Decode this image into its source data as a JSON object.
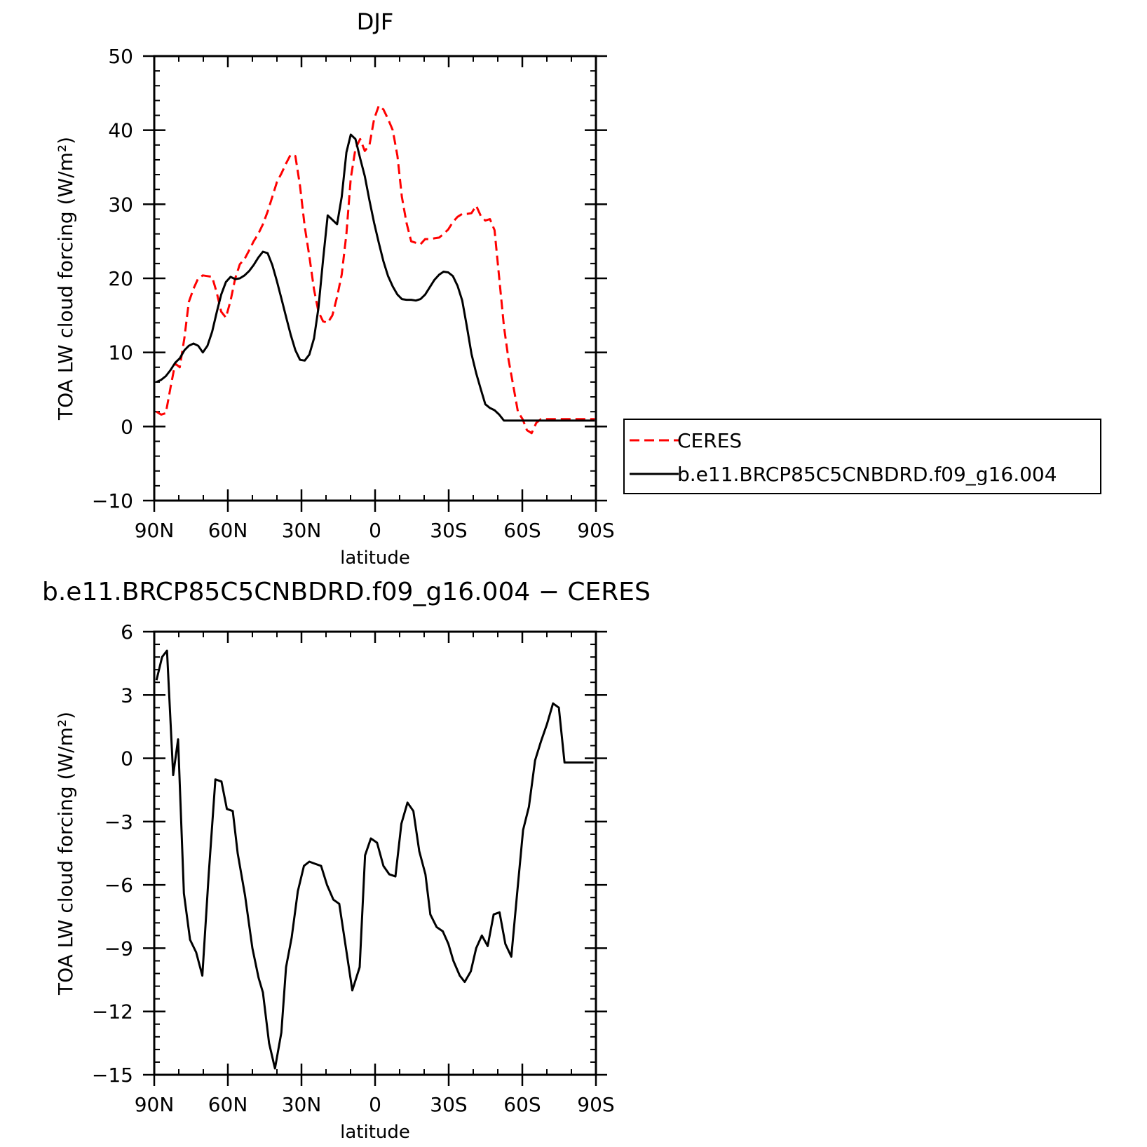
{
  "chart_data": [
    {
      "type": "line",
      "title": "DJF",
      "xlabel": "latitude",
      "ylabel": "TOA LW cloud forcing (W/m²)",
      "xlim": [
        90,
        -90
      ],
      "ylim": [
        -10,
        50
      ],
      "x_ticks": [
        90,
        60,
        30,
        0,
        -30,
        -60,
        -90
      ],
      "x_tick_labels": [
        "90N",
        "60N",
        "30N",
        "0",
        "30S",
        "60S",
        "90S"
      ],
      "y_ticks": [
        -10,
        0,
        10,
        20,
        30,
        40,
        50
      ],
      "y_tick_labels": [
        "−10",
        "0",
        "10",
        "20",
        "30",
        "40",
        "50"
      ],
      "legend_position": "right",
      "x": [
        89.1,
        87.2,
        85.3,
        83.4,
        81.5,
        79.6,
        77.7,
        75.9,
        74.0,
        72.1,
        70.2,
        68.3,
        66.4,
        64.5,
        62.7,
        60.8,
        58.9,
        57.0,
        55.1,
        53.2,
        51.3,
        49.5,
        47.6,
        45.7,
        43.8,
        41.9,
        40.0,
        38.1,
        36.3,
        34.4,
        32.5,
        30.6,
        28.7,
        26.8,
        24.9,
        23.1,
        21.2,
        19.3,
        17.4,
        15.5,
        13.6,
        11.7,
        9.9,
        8.0,
        6.1,
        4.2,
        2.3,
        0.4,
        -1.5,
        -3.4,
        -5.3,
        -7.2,
        -9.1,
        -10.9,
        -12.8,
        -14.7,
        -16.6,
        -18.5,
        -20.4,
        -22.3,
        -24.2,
        -26.1,
        -27.9,
        -29.8,
        -31.7,
        -33.6,
        -35.5,
        -37.4,
        -39.3,
        -41.2,
        -43.1,
        -44.9,
        -46.8,
        -48.7,
        -50.6,
        -52.5,
        -54.4,
        -56.3,
        -58.2,
        -60.1,
        -61.9,
        -63.8,
        -65.7,
        -67.6,
        -69.5,
        -71.4,
        -73.3,
        -75.2,
        -77.1,
        -78.9,
        -80.8,
        -82.7,
        -84.6,
        -86.5,
        -88.4,
        -89.5
      ],
      "series": [
        {
          "name": "CERES",
          "color": "#ff0000",
          "dash": "dashed",
          "values": [
            2.0,
            1.6,
            1.8,
            5.2,
            8.5,
            8.0,
            12.0,
            16.8,
            18.6,
            20.0,
            20.4,
            20.3,
            20.2,
            18.0,
            15.5,
            14.7,
            17.0,
            20.0,
            21.9,
            22.6,
            23.8,
            25.0,
            26.0,
            27.3,
            29.0,
            31.0,
            33.0,
            34.2,
            35.5,
            36.7,
            36.5,
            32.5,
            27.0,
            23.0,
            18.5,
            15.5,
            14.2,
            14.0,
            15.0,
            17.5,
            20.5,
            26.0,
            33.5,
            37.5,
            38.8,
            37.2,
            38.0,
            41.5,
            43.3,
            42.8,
            41.5,
            40.0,
            36.5,
            31.0,
            27.5,
            25.0,
            24.8,
            24.6,
            25.3,
            25.3,
            25.4,
            25.5,
            26.0,
            26.6,
            27.6,
            28.3,
            28.7,
            28.7,
            28.8,
            29.8,
            28.4,
            27.8,
            28.0,
            26.5,
            20.0,
            13.5,
            9.0,
            5.5,
            2.0,
            1.0,
            -0.5,
            -0.9,
            0.5,
            1.0,
            1.0,
            1.0,
            1.0,
            1.0,
            1.0,
            1.0,
            1.0,
            1.0,
            1.0,
            1.0,
            1.0,
            1.0
          ]
        },
        {
          "name": "b.e11.BRCP85C5CNBDRD.f09_g16.004",
          "color": "#000000",
          "dash": "solid",
          "values": [
            6.0,
            6.3,
            6.8,
            7.6,
            8.6,
            9.2,
            10.3,
            10.9,
            11.2,
            10.9,
            10.0,
            10.9,
            12.8,
            15.5,
            17.8,
            19.5,
            20.2,
            19.9,
            20.0,
            20.4,
            21.0,
            21.8,
            22.8,
            23.6,
            23.4,
            21.8,
            19.6,
            17.2,
            14.8,
            12.4,
            10.3,
            9.0,
            8.9,
            9.7,
            11.9,
            16.0,
            22.5,
            28.5,
            27.9,
            27.3,
            31.0,
            37.0,
            39.4,
            38.8,
            36.2,
            33.8,
            30.5,
            27.5,
            24.8,
            22.3,
            20.3,
            18.9,
            17.8,
            17.2,
            17.1,
            17.1,
            17.0,
            17.2,
            17.8,
            18.8,
            19.8,
            20.5,
            20.9,
            20.8,
            20.3,
            19.0,
            17.0,
            13.5,
            9.8,
            7.2,
            5.0,
            3.0,
            2.5,
            2.2,
            1.6,
            0.8,
            0.8,
            0.8,
            0.8,
            0.8,
            0.8,
            0.8,
            0.8,
            0.8,
            0.8,
            0.8,
            0.8,
            0.8,
            0.8,
            0.8,
            0.8,
            0.8,
            0.8,
            0.8,
            0.8,
            0.8
          ]
        }
      ]
    },
    {
      "type": "line",
      "title": "b.e11.BRCP85C5CNBDRD.f09_g16.004 − CERES",
      "xlabel": "latitude",
      "ylabel": "TOA LW cloud forcing (W/m²)",
      "xlim": [
        90,
        -90
      ],
      "ylim": [
        -15,
        6
      ],
      "x_ticks": [
        90,
        60,
        30,
        0,
        -30,
        -60,
        -90
      ],
      "x_tick_labels": [
        "90N",
        "60N",
        "30N",
        "0",
        "30S",
        "60S",
        "90S"
      ],
      "y_ticks": [
        -15,
        -12,
        -9,
        -6,
        -3,
        0,
        3,
        6
      ],
      "y_tick_labels": [
        "−15",
        "−12",
        "−9",
        "−6",
        "−3",
        "0",
        "3",
        "6"
      ],
      "x": [
        89.1,
        86.8,
        84.8,
        82.3,
        80.3,
        77.9,
        75.4,
        72.9,
        70.4,
        67.8,
        65.1,
        62.6,
        60.4,
        58.0,
        56.0,
        53.0,
        50.0,
        47.5,
        45.7,
        43.2,
        40.8,
        38.2,
        36.3,
        34.0,
        31.5,
        29.0,
        26.8,
        24.5,
        22.0,
        19.6,
        17.0,
        14.6,
        12.0,
        9.3,
        6.3,
        4.1,
        1.7,
        -0.8,
        -3.4,
        -5.8,
        -8.3,
        -10.7,
        -13.2,
        -15.6,
        -18.0,
        -20.5,
        -22.5,
        -25.1,
        -27.6,
        -29.9,
        -31.9,
        -34.5,
        -36.5,
        -39.0,
        -41.2,
        -43.5,
        -45.9,
        -48.3,
        -50.7,
        -53.1,
        -55.5,
        -57.9,
        -60.3,
        -62.7,
        -65.2,
        -67.6,
        -70.0,
        -72.5,
        -74.9,
        -77.2,
        -79.6,
        -81.9,
        -84.3,
        -86.6,
        -89.0
      ],
      "series": [
        {
          "name": "",
          "color": "#000000",
          "dash": "solid",
          "values": [
            3.7,
            4.8,
            5.1,
            -0.8,
            0.9,
            -6.4,
            -8.6,
            -9.2,
            -10.3,
            -5.5,
            -1.0,
            -1.1,
            -2.4,
            -2.5,
            -4.5,
            -6.5,
            -9.0,
            -10.4,
            -11.1,
            -13.5,
            -14.7,
            -13.0,
            -9.9,
            -8.5,
            -6.3,
            -5.1,
            -4.9,
            -5.0,
            -5.1,
            -6.0,
            -6.7,
            -6.9,
            -8.9,
            -11.0,
            -9.9,
            -4.6,
            -3.8,
            -4.0,
            -5.1,
            -5.5,
            -5.6,
            -3.1,
            -2.1,
            -2.5,
            -4.4,
            -5.5,
            -7.4,
            -8.0,
            -8.2,
            -8.8,
            -9.6,
            -10.3,
            -10.6,
            -10.1,
            -9.0,
            -8.4,
            -8.9,
            -7.4,
            -7.3,
            -8.8,
            -9.4,
            -6.4,
            -3.4,
            -2.3,
            -0.1,
            0.8,
            1.6,
            2.6,
            2.4,
            -0.2,
            -0.2,
            -0.2,
            -0.2,
            -0.2,
            -0.2
          ]
        }
      ]
    }
  ]
}
